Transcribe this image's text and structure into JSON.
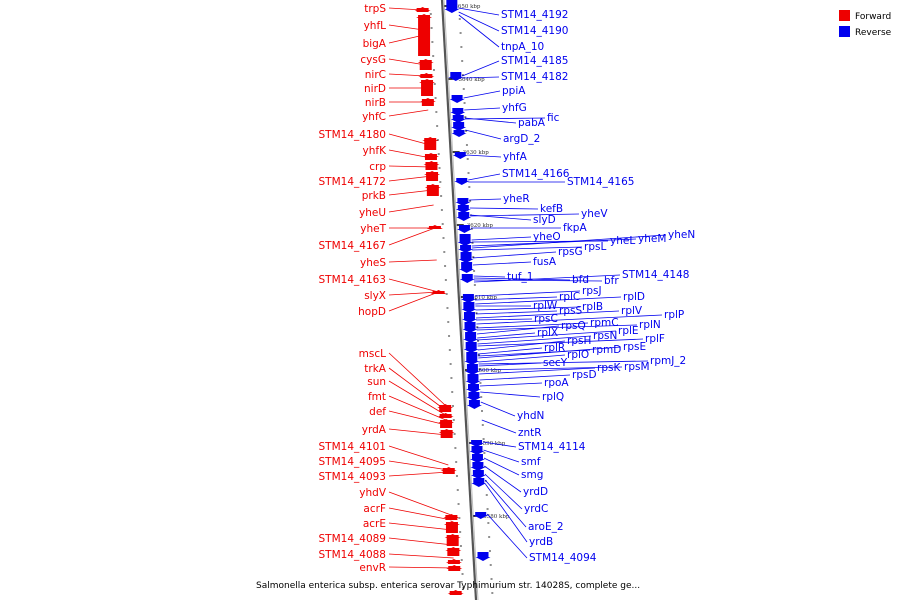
{
  "caption": "Salmonella enterica subsp. enterica serovar Typhimurium str. 14028S, complete ge...",
  "legend": [
    {
      "label": "Forward",
      "color": "#ee0000"
    },
    {
      "label": "Reverse",
      "color": "#0000ee"
    }
  ],
  "colors": {
    "forward": "#ee0000",
    "reverse": "#0000ee",
    "backbone": "#888888"
  },
  "kbp_marks": [
    "3650 kbp",
    "3640 kbp",
    "3630 kbp",
    "3620 kbp",
    "3610 kbp",
    "3600 kbp",
    "3590 kbp",
    "3580 kbp"
  ],
  "forward_genes": [
    "trpS",
    "yhfL",
    "bigA",
    "cysG",
    "nirC",
    "nirD",
    "nirB",
    "yhfC",
    "STM14_4180",
    "yhfK",
    "crp",
    "STM14_4172",
    "prkB",
    "yheU",
    "yheT",
    "STM14_4167",
    "yheS",
    "STM14_4163",
    "slyX",
    "hopD",
    "mscL",
    "trkA",
    "sun",
    "fmt",
    "def",
    "yrdA",
    "STM14_4101",
    "STM14_4095",
    "STM14_4093",
    "yhdV",
    "acrF",
    "acrE",
    "STM14_4089",
    "STM14_4088",
    "envR"
  ],
  "reverse_genes": [
    "STM14_4192",
    "STM14_4190",
    "tnpA_10",
    "STM14_4185",
    "STM14_4182",
    "ppiA",
    "yhfG",
    "pabA",
    "fic",
    "argD_2",
    "yhfA",
    "STM14_4166",
    "STM14_4165",
    "yheR",
    "kefB",
    "slyD",
    "yheV",
    "fkpA",
    "yheO",
    "yheL",
    "yheM",
    "yheN",
    "rpsL",
    "rpsG",
    "fusA",
    "tuf_1",
    "bfd",
    "bfr",
    "STM14_4148",
    "rpsJ",
    "rplC",
    "rplD",
    "rplW",
    "rplB",
    "rpsS",
    "rplV",
    "rpsC",
    "rplP",
    "rpmC",
    "rplN",
    "rpsQ",
    "rplX",
    "rplE",
    "rpsN",
    "rplF",
    "rpsH",
    "rplR",
    "rpmD",
    "rpsE",
    "rplO",
    "rpmJ_2",
    "secY",
    "rpsM",
    "rpsK",
    "rpsD",
    "rpoA",
    "rplQ",
    "yhdN",
    "zntR",
    "STM14_4114",
    "smf",
    "smg",
    "yrdD",
    "yrdC",
    "aroE_2",
    "yrdB",
    "STM14_4094"
  ]
}
